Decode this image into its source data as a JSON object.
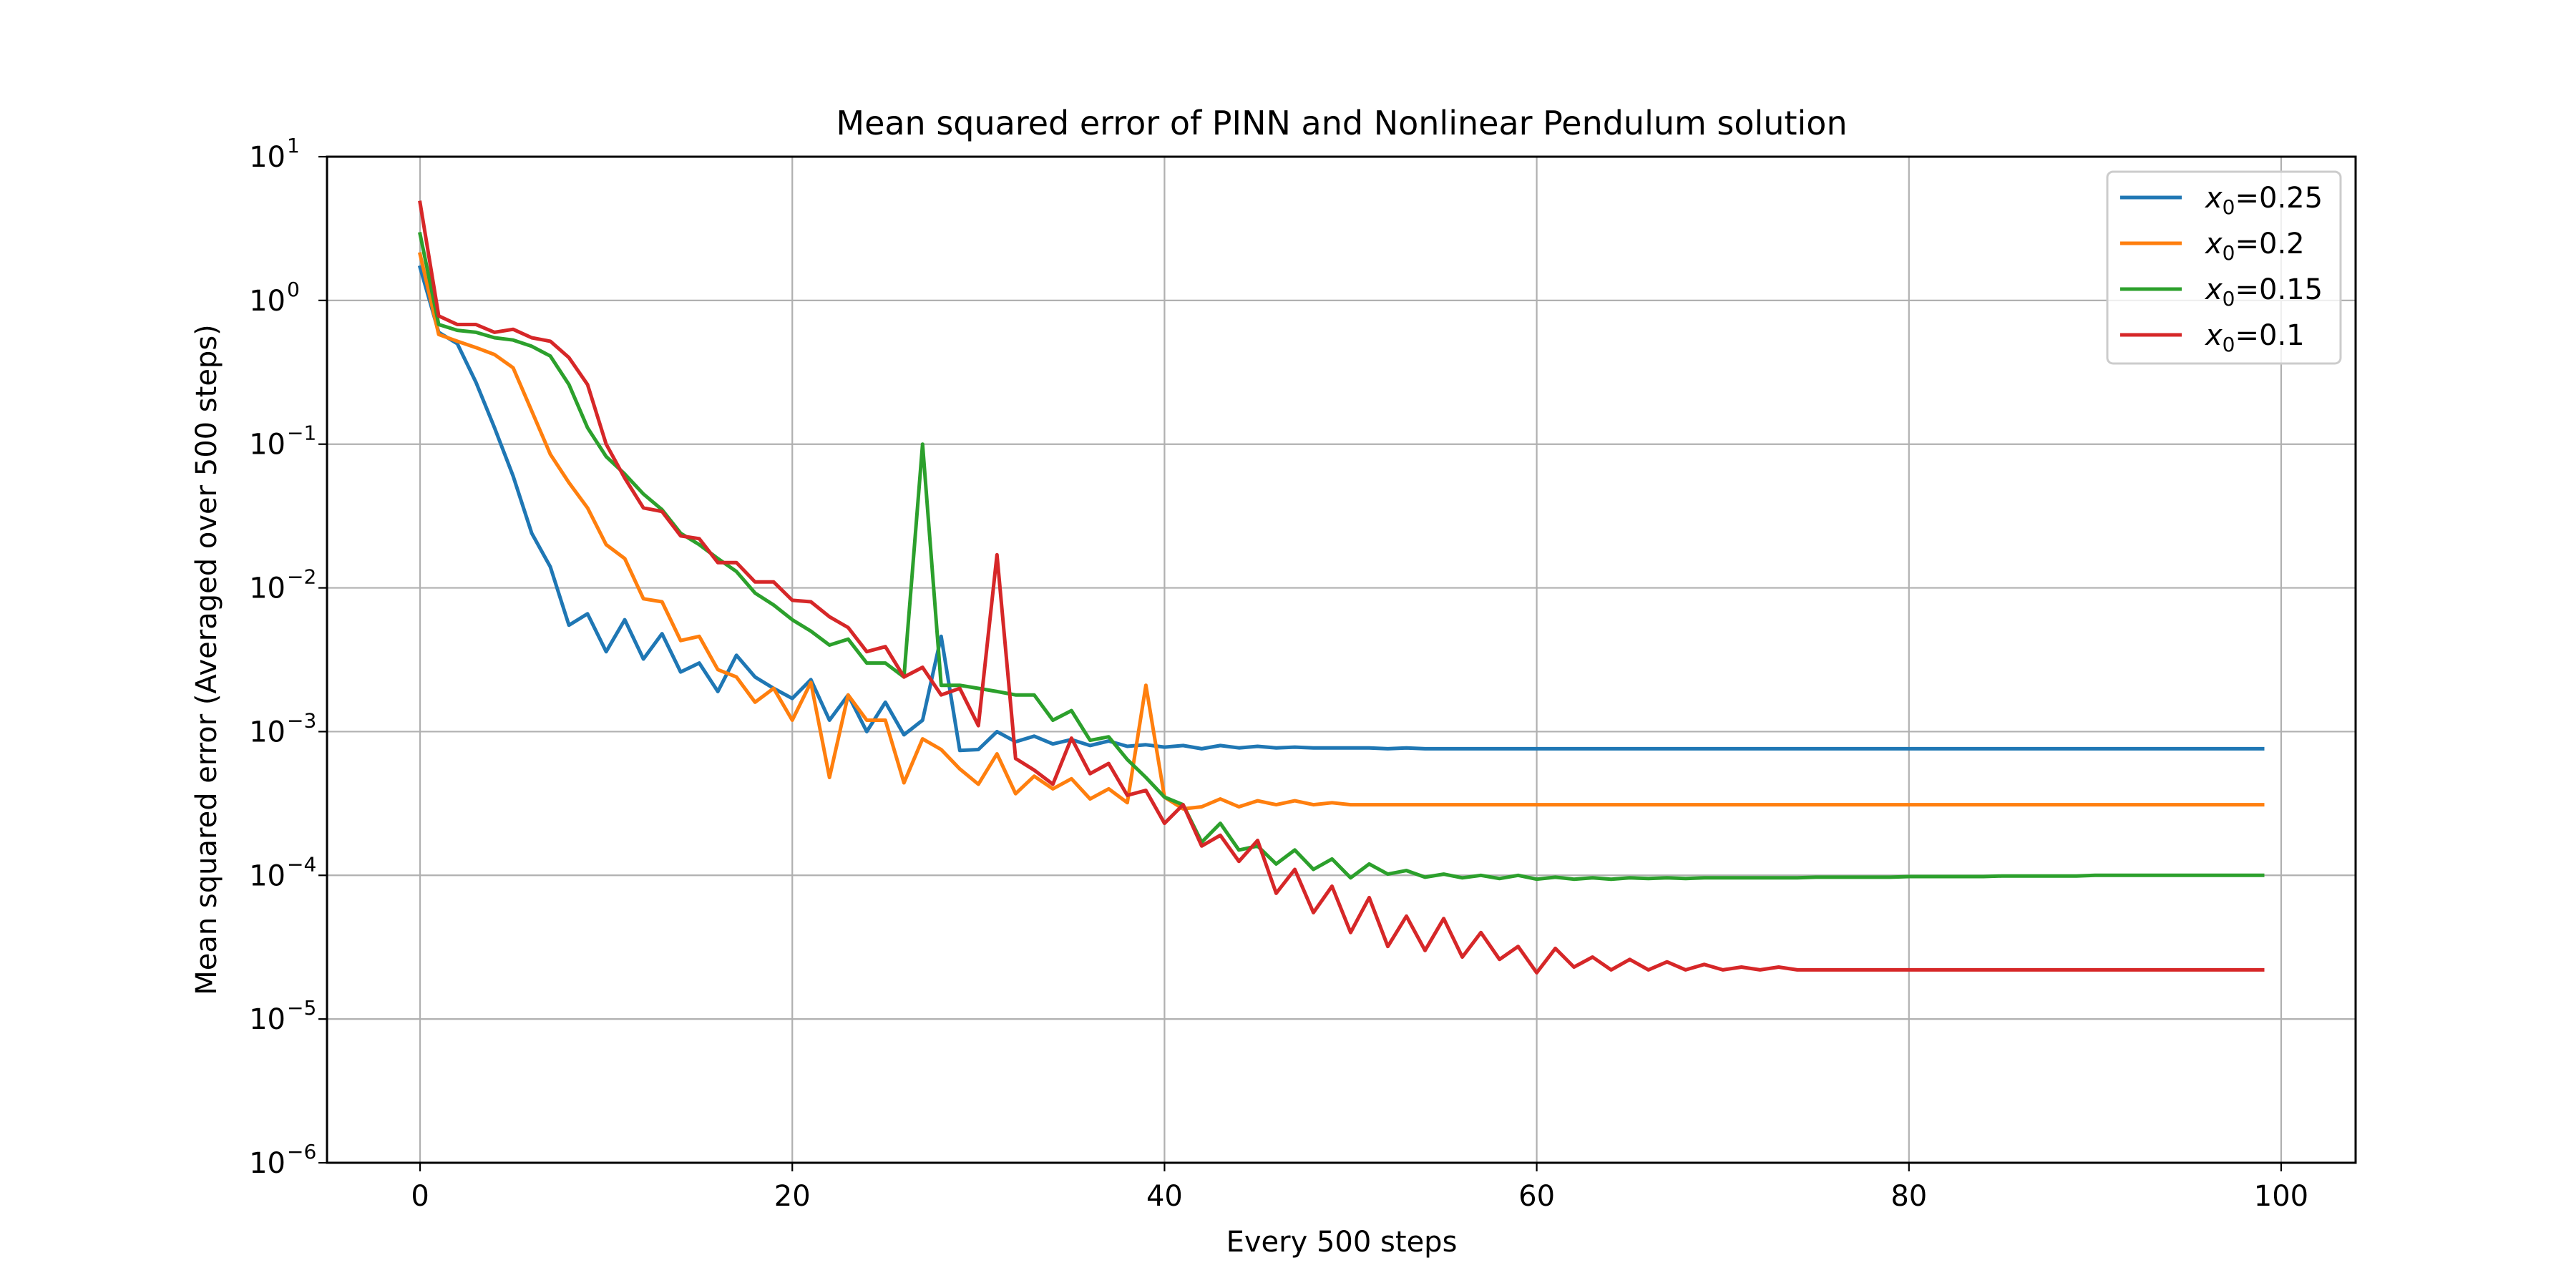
{
  "chart_data": {
    "type": "line",
    "title": "Mean squared error of PINN and Nonlinear Pendulum solution",
    "xlabel": "Every 500 steps",
    "ylabel": "Mean squared error (Averaged over 500 steps)",
    "xlim": [
      -5,
      104
    ],
    "ylim": [
      1e-06,
      10
    ],
    "yscale": "log",
    "grid": true,
    "legend_position": "top-right",
    "x_ticks": [
      0,
      20,
      40,
      60,
      80,
      100
    ],
    "y_ticks": [
      {
        "value": 1e-06,
        "base": "10",
        "exp": "−6"
      },
      {
        "value": 1e-05,
        "base": "10",
        "exp": "−5"
      },
      {
        "value": 0.0001,
        "base": "10",
        "exp": "−4"
      },
      {
        "value": 0.001,
        "base": "10",
        "exp": "−3"
      },
      {
        "value": 0.01,
        "base": "10",
        "exp": "−2"
      },
      {
        "value": 0.1,
        "base": "10",
        "exp": "−1"
      },
      {
        "value": 1,
        "base": "10",
        "exp": "0"
      },
      {
        "value": 10,
        "base": "10",
        "exp": "1"
      }
    ],
    "series": [
      {
        "legend_sym": "x",
        "legend_sub": "0",
        "legend_val": "=0.25",
        "color": "#1f77b4",
        "values": [
          1.7,
          0.6,
          0.5,
          0.27,
          0.13,
          0.06,
          0.024,
          0.014,
          0.0055,
          0.0066,
          0.0036,
          0.006,
          0.0032,
          0.0048,
          0.0026,
          0.003,
          0.0019,
          0.0034,
          0.0024,
          0.002,
          0.0017,
          0.0023,
          0.0012,
          0.0018,
          0.001,
          0.0016,
          0.00095,
          0.0012,
          0.0046,
          0.00074,
          0.00075,
          0.001,
          0.00085,
          0.00093,
          0.00082,
          0.00088,
          0.0008,
          0.00086,
          0.00079,
          0.00081,
          0.00078,
          0.0008,
          0.00076,
          0.0008,
          0.00077,
          0.00079,
          0.00077,
          0.00078,
          0.00077,
          0.00077,
          0.00077,
          0.00077,
          0.00076,
          0.00077,
          0.00076,
          0.00076,
          0.00076,
          0.00076,
          0.00076,
          0.00076,
          0.00076,
          0.00076,
          0.00076,
          0.00076,
          0.00076,
          0.00076,
          0.00076,
          0.00076,
          0.00076,
          0.00076,
          0.00076,
          0.00076,
          0.00076,
          0.00076,
          0.00076,
          0.00076,
          0.00076,
          0.00076,
          0.00076,
          0.00076,
          0.00076,
          0.00076,
          0.00076,
          0.00076,
          0.00076,
          0.00076,
          0.00076,
          0.00076,
          0.00076,
          0.00076,
          0.00076,
          0.00076,
          0.00076,
          0.00076,
          0.00076,
          0.00076,
          0.00076,
          0.00076,
          0.00076,
          0.00076
        ]
      },
      {
        "legend_sym": "x",
        "legend_sub": "0",
        "legend_val": "=0.2",
        "color": "#ff7f0e",
        "values": [
          2.1,
          0.58,
          0.52,
          0.47,
          0.42,
          0.34,
          0.17,
          0.085,
          0.054,
          0.036,
          0.02,
          0.016,
          0.0084,
          0.008,
          0.0043,
          0.0046,
          0.0027,
          0.0024,
          0.0016,
          0.002,
          0.0012,
          0.0022,
          0.00048,
          0.0018,
          0.0012,
          0.0012,
          0.00044,
          0.00089,
          0.00075,
          0.00055,
          0.00043,
          0.0007,
          0.00037,
          0.00049,
          0.0004,
          0.00047,
          0.00034,
          0.0004,
          0.00032,
          0.0021,
          0.00035,
          0.00029,
          0.0003,
          0.00034,
          0.0003,
          0.00033,
          0.00031,
          0.00033,
          0.00031,
          0.00032,
          0.00031,
          0.00031,
          0.00031,
          0.00031,
          0.00031,
          0.00031,
          0.00031,
          0.00031,
          0.00031,
          0.00031,
          0.00031,
          0.00031,
          0.00031,
          0.00031,
          0.00031,
          0.00031,
          0.00031,
          0.00031,
          0.00031,
          0.00031,
          0.00031,
          0.00031,
          0.00031,
          0.00031,
          0.00031,
          0.00031,
          0.00031,
          0.00031,
          0.00031,
          0.00031,
          0.00031,
          0.00031,
          0.00031,
          0.00031,
          0.00031,
          0.00031,
          0.00031,
          0.00031,
          0.00031,
          0.00031,
          0.00031,
          0.00031,
          0.00031,
          0.00031,
          0.00031,
          0.00031,
          0.00031,
          0.00031,
          0.00031,
          0.00031
        ]
      },
      {
        "legend_sym": "x",
        "legend_sub": "0",
        "legend_val": "=0.15",
        "color": "#2ca02c",
        "values": [
          2.9,
          0.68,
          0.62,
          0.6,
          0.55,
          0.53,
          0.48,
          0.41,
          0.26,
          0.13,
          0.082,
          0.062,
          0.045,
          0.035,
          0.024,
          0.02,
          0.016,
          0.013,
          0.0092,
          0.0076,
          0.006,
          0.005,
          0.004,
          0.0044,
          0.003,
          0.003,
          0.0024,
          0.1,
          0.0021,
          0.0021,
          0.002,
          0.0019,
          0.0018,
          0.0018,
          0.0012,
          0.0014,
          0.00087,
          0.00092,
          0.00064,
          0.00048,
          0.00035,
          0.00031,
          0.00017,
          0.00023,
          0.00015,
          0.00016,
          0.00012,
          0.00015,
          0.00011,
          0.00013,
          9.6e-05,
          0.00012,
          0.000102,
          0.000108,
          9.7e-05,
          0.000102,
          9.6e-05,
          0.0001,
          9.5e-05,
          0.0001,
          9.4e-05,
          9.7e-05,
          9.4e-05,
          9.6e-05,
          9.4e-05,
          9.6e-05,
          9.5e-05,
          9.6e-05,
          9.5e-05,
          9.6e-05,
          9.6e-05,
          9.6e-05,
          9.6e-05,
          9.6e-05,
          9.6e-05,
          9.7e-05,
          9.7e-05,
          9.7e-05,
          9.7e-05,
          9.7e-05,
          9.8e-05,
          9.8e-05,
          9.8e-05,
          9.8e-05,
          9.8e-05,
          9.9e-05,
          9.9e-05,
          9.9e-05,
          9.9e-05,
          9.9e-05,
          0.0001,
          0.0001,
          0.0001,
          0.0001,
          0.0001,
          0.0001,
          0.0001,
          0.0001,
          0.0001,
          0.0001
        ]
      },
      {
        "legend_sym": "x",
        "legend_sub": "0",
        "legend_val": "=0.1",
        "color": "#d62728",
        "values": [
          4.8,
          0.78,
          0.68,
          0.68,
          0.6,
          0.63,
          0.55,
          0.52,
          0.4,
          0.26,
          0.1,
          0.058,
          0.036,
          0.034,
          0.023,
          0.022,
          0.015,
          0.015,
          0.011,
          0.011,
          0.0082,
          0.008,
          0.0063,
          0.0053,
          0.0036,
          0.0039,
          0.0024,
          0.0028,
          0.0018,
          0.002,
          0.0011,
          0.017,
          0.00065,
          0.00054,
          0.00043,
          0.0009,
          0.00051,
          0.0006,
          0.00036,
          0.00039,
          0.00023,
          0.00031,
          0.00016,
          0.00019,
          0.000125,
          0.000175,
          7.5e-05,
          0.00011,
          5.5e-05,
          8.4e-05,
          4e-05,
          7e-05,
          3.2e-05,
          5.2e-05,
          3e-05,
          5e-05,
          2.7e-05,
          4e-05,
          2.6e-05,
          3.2e-05,
          2.1e-05,
          3.1e-05,
          2.3e-05,
          2.7e-05,
          2.2e-05,
          2.6e-05,
          2.2e-05,
          2.5e-05,
          2.2e-05,
          2.4e-05,
          2.2e-05,
          2.3e-05,
          2.2e-05,
          2.3e-05,
          2.2e-05,
          2.2e-05,
          2.2e-05,
          2.2e-05,
          2.2e-05,
          2.2e-05,
          2.2e-05,
          2.2e-05,
          2.2e-05,
          2.2e-05,
          2.2e-05,
          2.2e-05,
          2.2e-05,
          2.2e-05,
          2.2e-05,
          2.2e-05,
          2.2e-05,
          2.2e-05,
          2.2e-05,
          2.2e-05,
          2.2e-05,
          2.2e-05,
          2.2e-05,
          2.2e-05,
          2.2e-05,
          2.2e-05
        ]
      }
    ]
  }
}
